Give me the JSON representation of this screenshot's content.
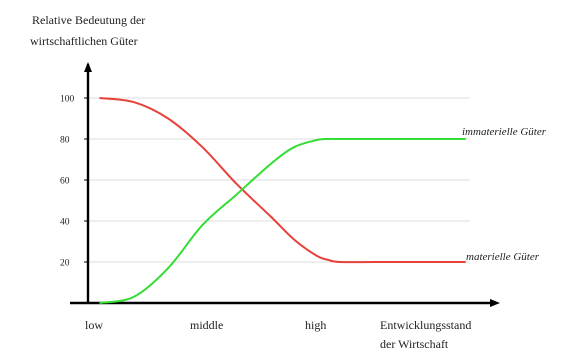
{
  "chart_data": {
    "type": "line",
    "title": "",
    "ylabel_lines": [
      "Relative Bedeutung der",
      "wirtschaftlichen Güter"
    ],
    "xlabel_lines": [
      "Entwicklungsstand",
      "der Wirtschaft"
    ],
    "x_categories": [
      "low",
      "middle",
      "high"
    ],
    "yticks": [
      20,
      40,
      60,
      80,
      100
    ],
    "ylim": [
      0,
      118
    ],
    "xlim": [
      0,
      3.6
    ],
    "grid": "horizontal",
    "colors": {
      "materiell": "#e8403a",
      "immateriell": "#33dd33",
      "axis": "#000000",
      "grid": "#dddddd"
    },
    "series": [
      {
        "name": "materielle Güter",
        "color": "#e8403a",
        "x": [
          0.1,
          0.4,
          0.7,
          1.0,
          1.3,
          1.6,
          1.8,
          2.0,
          2.1,
          2.2,
          2.5,
          2.9,
          3.3
        ],
        "y": [
          100,
          98,
          90,
          76,
          58,
          42,
          31,
          23,
          21,
          20,
          20,
          20,
          20
        ]
      },
      {
        "name": "immaterielle Güter",
        "color": "#33dd33",
        "x": [
          0.1,
          0.4,
          0.7,
          1.0,
          1.3,
          1.6,
          1.8,
          2.0,
          2.1,
          2.2,
          2.5,
          2.9,
          3.3
        ],
        "y": [
          0,
          3,
          17,
          38,
          53,
          68,
          76,
          79.5,
          80,
          80,
          80,
          80,
          80
        ]
      }
    ]
  }
}
